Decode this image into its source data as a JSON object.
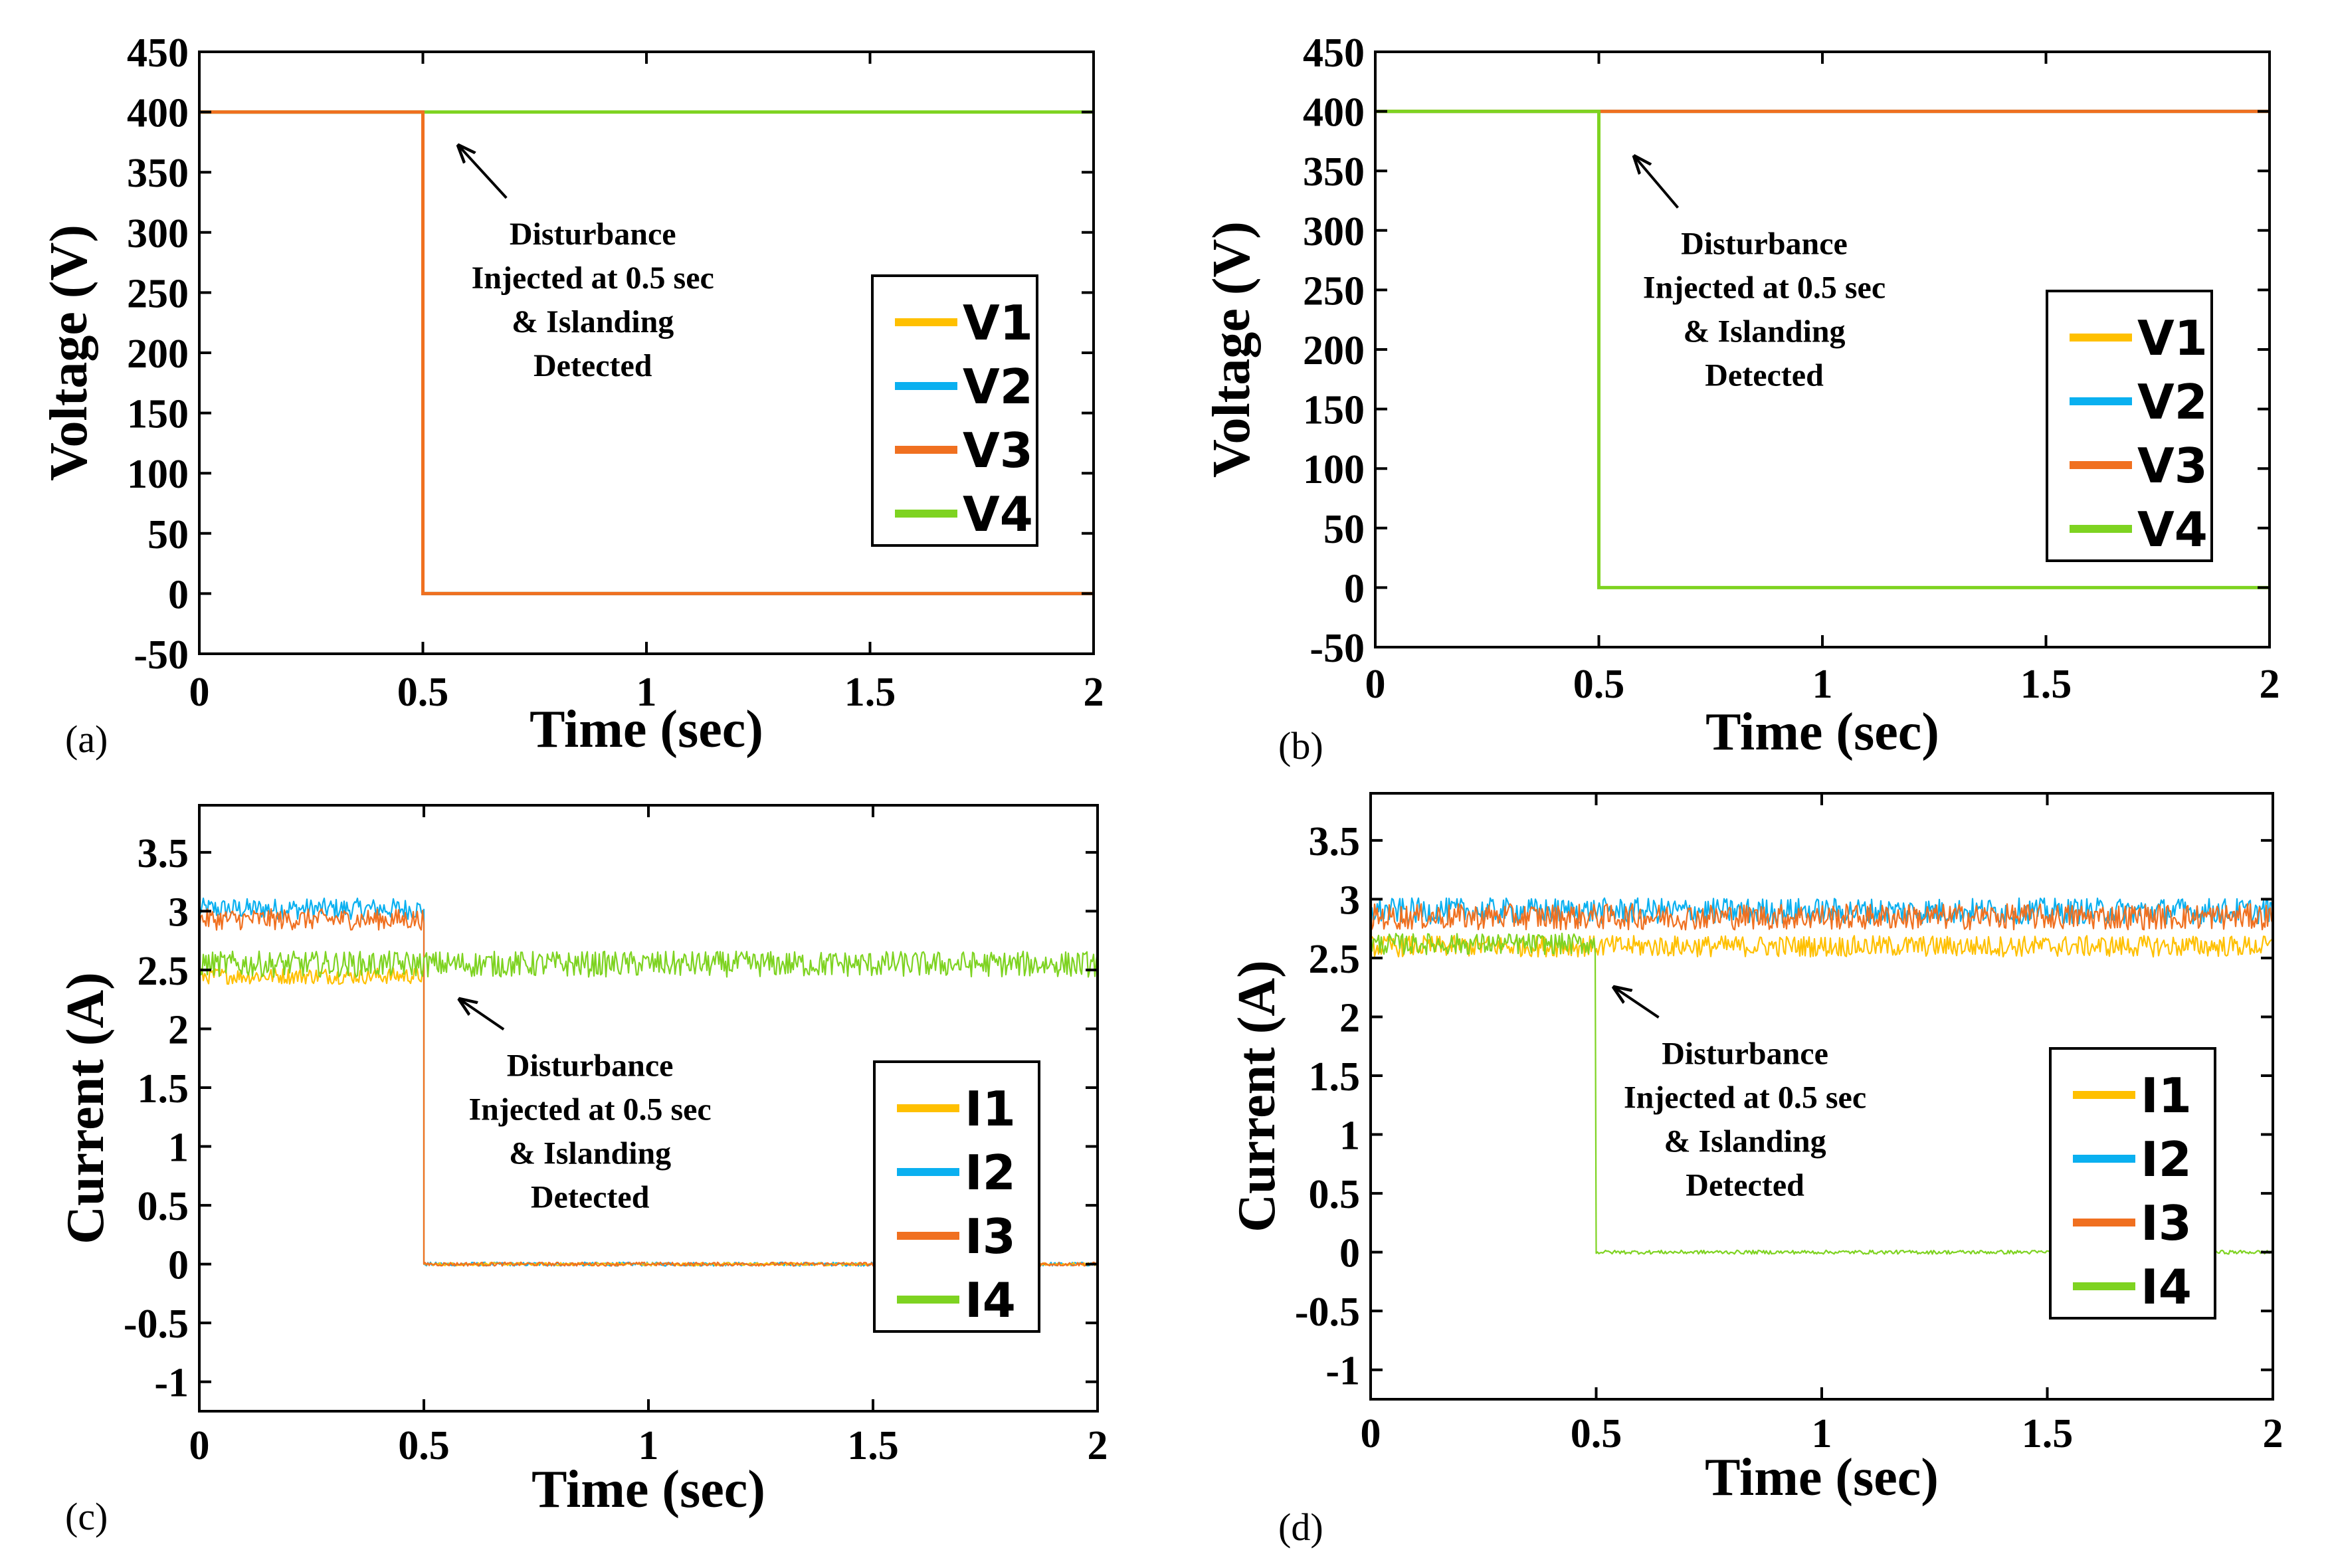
{
  "figure": {
    "panel_labels": [
      "(a)",
      "(b)",
      "(c)",
      "(d)"
    ]
  },
  "colors": {
    "series": [
      "#FFC000",
      "#0AB0F0",
      "#F07020",
      "#7ED321"
    ],
    "frame": "#000000"
  },
  "chart_data": [
    {
      "type": "line",
      "panel": "(a)",
      "xlabel": "Time (sec)",
      "ylabel": "Voltage (V)",
      "xlim": [
        0,
        2
      ],
      "ylim": [
        -50,
        450
      ],
      "xticks": [
        0,
        0.5,
        1,
        1.5,
        2
      ],
      "xtick_labels": [
        "0",
        "0.5",
        "1",
        "1.5",
        "2"
      ],
      "yticks": [
        -50,
        0,
        50,
        100,
        150,
        200,
        250,
        300,
        350,
        400,
        450
      ],
      "ytick_labels": [
        "-50",
        "0",
        "50",
        "100",
        "150",
        "200",
        "250",
        "300",
        "350",
        "400",
        "450"
      ],
      "annotation": {
        "lines": [
          "Disturbance",
          "Injected at 0.5 sec",
          "& Islanding",
          "Detected"
        ],
        "arrow_tip": [
          0.58,
          372
        ],
        "text_x": 0.88,
        "text_top_y": 290
      },
      "legend": {
        "position": "right"
      },
      "series": [
        {
          "name": "V1",
          "points": [
            [
              0,
              400
            ],
            [
              0.5,
              400
            ],
            [
              0.5,
              0
            ],
            [
              2,
              0
            ]
          ],
          "noise": 0
        },
        {
          "name": "V2",
          "points": [
            [
              0,
              400
            ],
            [
              0.5,
              400
            ],
            [
              0.5,
              0
            ],
            [
              2,
              0
            ]
          ],
          "noise": 0
        },
        {
          "name": "V4",
          "points": [
            [
              0,
              400
            ],
            [
              2,
              400
            ]
          ],
          "noise": 0
        },
        {
          "name": "V3",
          "points": [
            [
              0,
              400
            ],
            [
              0.5,
              400
            ],
            [
              0.5,
              0
            ],
            [
              2,
              0
            ]
          ],
          "noise": 0
        }
      ]
    },
    {
      "type": "line",
      "panel": "(b)",
      "xlabel": "Time (sec)",
      "ylabel": "Voltage (V)",
      "xlim": [
        0,
        2
      ],
      "ylim": [
        -50,
        450
      ],
      "xticks": [
        0,
        0.5,
        1,
        1.5,
        2
      ],
      "xtick_labels": [
        "0",
        "0.5",
        "1",
        "1.5",
        "2"
      ],
      "yticks": [
        -50,
        0,
        50,
        100,
        150,
        200,
        250,
        300,
        350,
        400,
        450
      ],
      "ytick_labels": [
        "-50",
        "0",
        "50",
        "100",
        "150",
        "200",
        "250",
        "300",
        "350",
        "400",
        "450"
      ],
      "annotation": {
        "lines": [
          "Disturbance",
          "Injected at 0.5 sec",
          "& Islanding",
          "Detected"
        ],
        "arrow_tip": [
          0.58,
          362
        ],
        "text_x": 0.87,
        "text_top_y": 280
      },
      "legend": {
        "position": "right"
      },
      "series": [
        {
          "name": "V1",
          "points": [
            [
              0,
              400
            ],
            [
              2,
              400
            ]
          ],
          "noise": 0
        },
        {
          "name": "V2",
          "points": [
            [
              0,
              400
            ],
            [
              2,
              400
            ]
          ],
          "noise": 0
        },
        {
          "name": "V3",
          "points": [
            [
              0,
              400
            ],
            [
              2,
              400
            ]
          ],
          "noise": 0
        },
        {
          "name": "V4",
          "points": [
            [
              0,
              400
            ],
            [
              0.5,
              400
            ],
            [
              0.5,
              0
            ],
            [
              2,
              0
            ]
          ],
          "noise": 0
        }
      ]
    },
    {
      "type": "line",
      "panel": "(c)",
      "xlabel": "Time (sec)",
      "ylabel": "Current (A)",
      "xlim": [
        0,
        2
      ],
      "ylim": [
        -1.25,
        3.9
      ],
      "xticks": [
        0,
        0.5,
        1,
        1.5,
        2
      ],
      "xtick_labels": [
        "0",
        "0.5",
        "1",
        "1.5",
        "2"
      ],
      "yticks": [
        -1,
        -0.5,
        0,
        0.5,
        1,
        1.5,
        2,
        2.5,
        3,
        3.5
      ],
      "ytick_labels": [
        "-1",
        "-0.5",
        "0",
        "0.5",
        "1",
        "1.5",
        "2",
        "2.5",
        "3",
        "3.5"
      ],
      "annotation": {
        "lines": [
          "Disturbance",
          "Injected at 0.5 sec",
          "& Islanding",
          "Detected"
        ],
        "arrow_tip": [
          0.58,
          2.25
        ],
        "text_x": 0.87,
        "text_top_y": 1.6
      },
      "legend": {
        "position": "right"
      },
      "series": [
        {
          "name": "I2",
          "points": [
            [
              0,
              3.02
            ],
            [
              0.5,
              3.02
            ],
            [
              0.5,
              0
            ],
            [
              2,
              0
            ]
          ],
          "noise": 0.09,
          "spike": -0.75
        },
        {
          "name": "I1",
          "points": [
            [
              0,
              2.45
            ],
            [
              0.5,
              2.45
            ],
            [
              0.5,
              0
            ],
            [
              2,
              0
            ]
          ],
          "noise": 0.07
        },
        {
          "name": "I3",
          "points": [
            [
              0,
              2.93
            ],
            [
              0.5,
              2.93
            ],
            [
              0.5,
              0
            ],
            [
              2,
              0
            ]
          ],
          "noise": 0.09,
          "spike": -0.75
        },
        {
          "name": "I4",
          "points": [
            [
              0,
              2.55
            ],
            [
              2,
              2.55
            ]
          ],
          "noise": 0.11
        }
      ]
    },
    {
      "type": "line",
      "panel": "(d)",
      "xlabel": "Time (sec)",
      "ylabel": "Current (A)",
      "xlim": [
        0,
        2
      ],
      "ylim": [
        -1.25,
        3.9
      ],
      "xticks": [
        0,
        0.5,
        1,
        1.5,
        2
      ],
      "xtick_labels": [
        "0",
        "0.5",
        "1",
        "1.5",
        "2"
      ],
      "yticks": [
        -1,
        -0.5,
        0,
        0.5,
        1,
        1.5,
        2,
        2.5,
        3,
        3.5
      ],
      "ytick_labels": [
        "-1",
        "-0.5",
        "0",
        "0.5",
        "1",
        "1.5",
        "2",
        "2.5",
        "3",
        "3.5"
      ],
      "annotation": {
        "lines": [
          "Disturbance",
          "Injected at 0.5 sec",
          "& Islanding",
          "Detected"
        ],
        "arrow_tip": [
          0.54,
          2.25
        ],
        "text_x": 0.83,
        "text_top_y": 1.6
      },
      "legend": {
        "position": "right"
      },
      "series": [
        {
          "name": "I1",
          "points": [
            [
              0,
              2.6
            ],
            [
              2,
              2.6
            ]
          ],
          "noise": 0.09
        },
        {
          "name": "I2",
          "points": [
            [
              0,
              2.9
            ],
            [
              2,
              2.9
            ]
          ],
          "noise": 0.11,
          "spike": -0.75
        },
        {
          "name": "I3",
          "points": [
            [
              0,
              2.85
            ],
            [
              2,
              2.85
            ]
          ],
          "noise": 0.11,
          "spike": -0.75
        },
        {
          "name": "I4",
          "points": [
            [
              0,
              2.62
            ],
            [
              0.5,
              2.62
            ],
            [
              0.5,
              0
            ],
            [
              2,
              0
            ]
          ],
          "noise": 0.09
        }
      ]
    }
  ]
}
